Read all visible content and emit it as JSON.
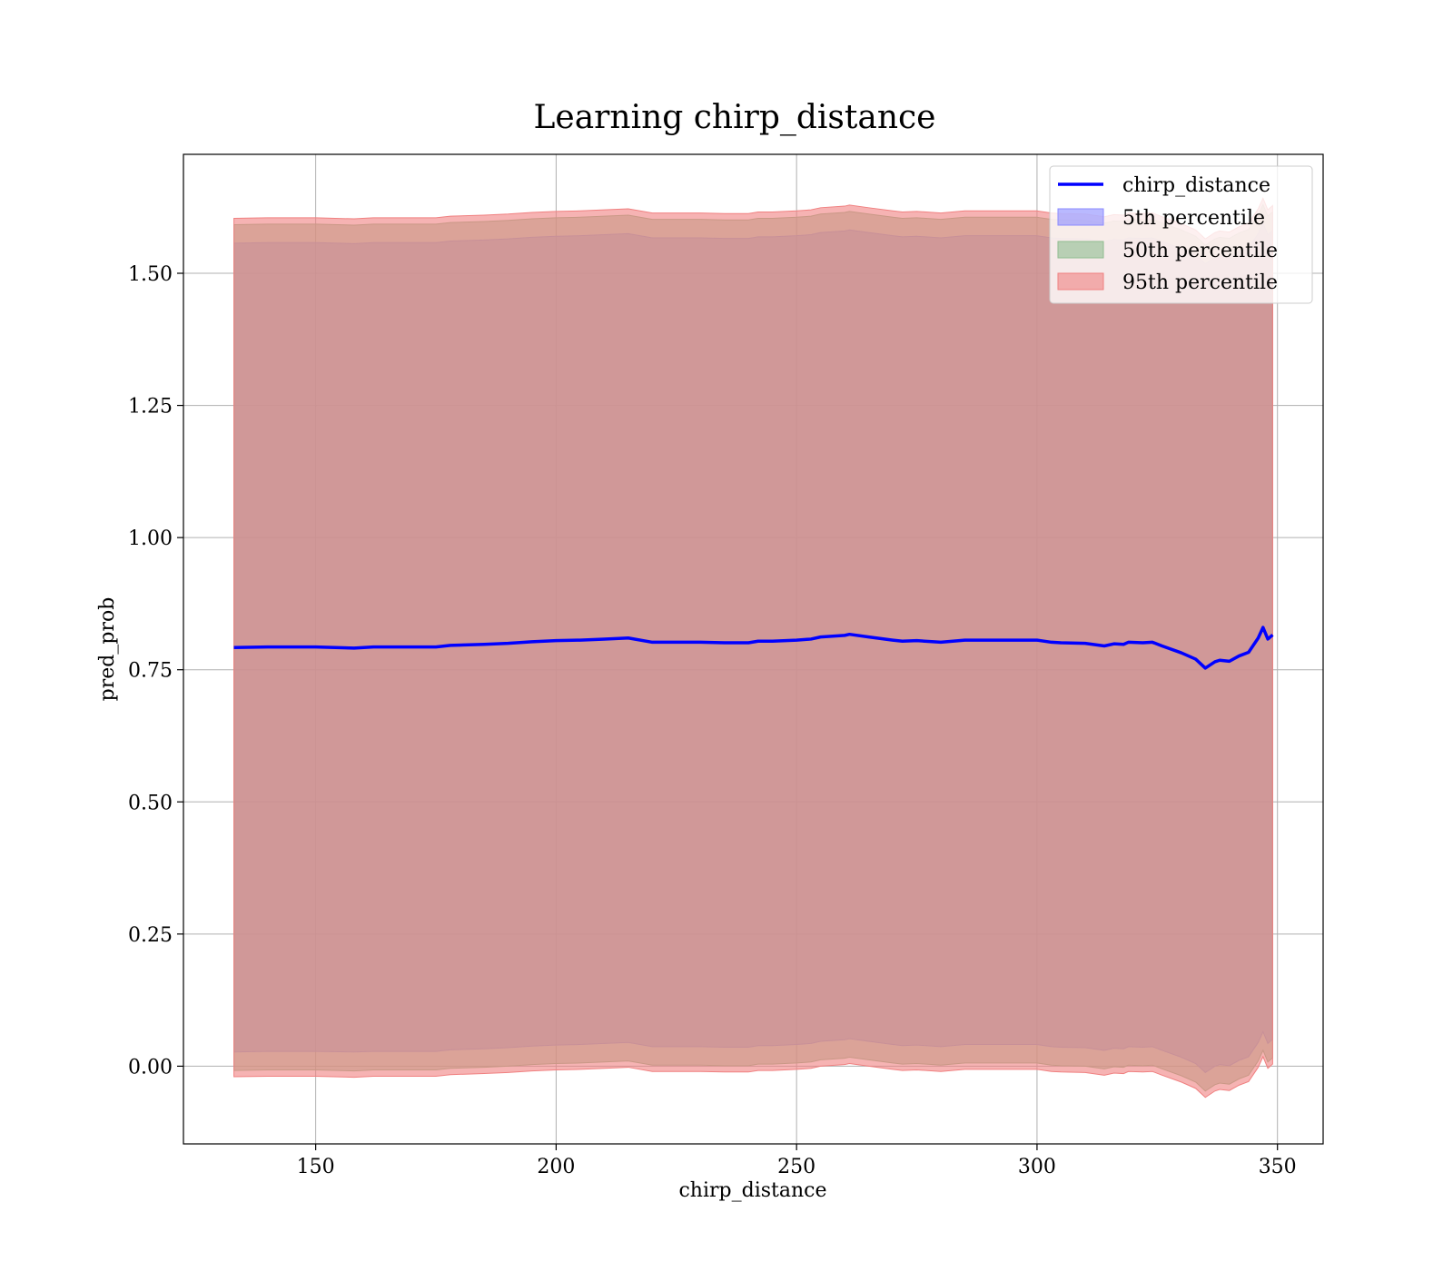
{
  "chart_data": {
    "type": "area",
    "title": "Learning chirp_distance",
    "xlabel": "chirp_distance",
    "ylabel": "pred_prob",
    "xlim": [
      122.5,
      359.5
    ],
    "ylim": [
      -0.147,
      1.725
    ],
    "xticks": [
      150,
      200,
      250,
      300,
      350
    ],
    "xtick_labels": [
      "150",
      "200",
      "250",
      "300",
      "350"
    ],
    "yticks": [
      0.0,
      0.25,
      0.5,
      0.75,
      1.0,
      1.25,
      1.5
    ],
    "ytick_labels": [
      "0.00",
      "0.25",
      "0.50",
      "0.75",
      "1.00",
      "1.25",
      "1.50"
    ],
    "grid": true,
    "legend_position": "top-right",
    "legend": [
      "chirp_distance",
      "5th percentile",
      "50th percentile",
      "95th percentile"
    ],
    "x": [
      133,
      140,
      150,
      158,
      162,
      170,
      175,
      178,
      185,
      190,
      195,
      200,
      205,
      210,
      215,
      220,
      225,
      230,
      235,
      240,
      242,
      245,
      250,
      253,
      255,
      260,
      261,
      265,
      270,
      272,
      275,
      280,
      285,
      290,
      295,
      300,
      303,
      305,
      310,
      314,
      316,
      318,
      319,
      322,
      324,
      326,
      330,
      333,
      335,
      337,
      338,
      340,
      342,
      344,
      346,
      347,
      348,
      349
    ],
    "series": [
      {
        "name": "chirp_distance",
        "values": [
          0.792,
          0.793,
          0.793,
          0.791,
          0.793,
          0.793,
          0.793,
          0.796,
          0.798,
          0.8,
          0.803,
          0.805,
          0.806,
          0.808,
          0.81,
          0.802,
          0.802,
          0.802,
          0.801,
          0.801,
          0.804,
          0.804,
          0.806,
          0.808,
          0.812,
          0.815,
          0.817,
          0.812,
          0.806,
          0.804,
          0.805,
          0.802,
          0.806,
          0.806,
          0.806,
          0.806,
          0.802,
          0.801,
          0.8,
          0.795,
          0.799,
          0.798,
          0.802,
          0.801,
          0.802,
          0.795,
          0.782,
          0.77,
          0.753,
          0.765,
          0.768,
          0.766,
          0.776,
          0.783,
          0.81,
          0.83,
          0.808,
          0.816
        ]
      },
      {
        "name": "5th percentile",
        "color": "#8b8bff",
        "lower": [
          0.027,
          0.028,
          0.028,
          0.027,
          0.028,
          0.028,
          0.028,
          0.031,
          0.033,
          0.035,
          0.038,
          0.04,
          0.041,
          0.043,
          0.045,
          0.037,
          0.037,
          0.037,
          0.036,
          0.036,
          0.039,
          0.039,
          0.041,
          0.043,
          0.047,
          0.05,
          0.052,
          0.047,
          0.041,
          0.039,
          0.04,
          0.037,
          0.041,
          0.041,
          0.041,
          0.041,
          0.037,
          0.036,
          0.035,
          0.03,
          0.034,
          0.033,
          0.037,
          0.036,
          0.037,
          0.03,
          0.017,
          0.005,
          -0.012,
          0.0,
          0.003,
          0.001,
          0.011,
          0.018,
          0.045,
          0.065,
          0.043,
          0.051
        ],
        "upper": [
          1.557,
          1.558,
          1.558,
          1.556,
          1.558,
          1.558,
          1.558,
          1.561,
          1.563,
          1.565,
          1.568,
          1.57,
          1.571,
          1.573,
          1.575,
          1.567,
          1.567,
          1.567,
          1.566,
          1.566,
          1.569,
          1.569,
          1.571,
          1.573,
          1.577,
          1.58,
          1.582,
          1.577,
          1.571,
          1.569,
          1.57,
          1.567,
          1.571,
          1.571,
          1.571,
          1.571,
          1.567,
          1.566,
          1.565,
          1.56,
          1.564,
          1.563,
          1.567,
          1.566,
          1.567,
          1.56,
          1.547,
          1.535,
          1.518,
          1.53,
          1.533,
          1.531,
          1.541,
          1.548,
          1.575,
          1.595,
          1.573,
          1.581
        ]
      },
      {
        "name": "50th percentile",
        "color": "#8fbc8f",
        "lower": [
          -0.008,
          -0.007,
          -0.007,
          -0.009,
          -0.007,
          -0.007,
          -0.007,
          -0.004,
          -0.002,
          0.0,
          0.003,
          0.005,
          0.006,
          0.008,
          0.01,
          0.002,
          0.002,
          0.002,
          0.001,
          0.001,
          0.004,
          0.004,
          0.006,
          0.008,
          0.012,
          0.015,
          0.017,
          0.012,
          0.006,
          0.004,
          0.005,
          0.002,
          0.006,
          0.006,
          0.006,
          0.006,
          0.002,
          0.001,
          0.0,
          -0.005,
          -0.001,
          -0.002,
          0.002,
          0.001,
          0.002,
          -0.005,
          -0.018,
          -0.03,
          -0.047,
          -0.035,
          -0.032,
          -0.034,
          -0.024,
          -0.017,
          0.01,
          0.03,
          0.008,
          0.016
        ],
        "upper": [
          1.592,
          1.593,
          1.593,
          1.591,
          1.593,
          1.593,
          1.593,
          1.596,
          1.598,
          1.6,
          1.603,
          1.605,
          1.606,
          1.608,
          1.61,
          1.602,
          1.602,
          1.602,
          1.601,
          1.601,
          1.604,
          1.604,
          1.606,
          1.608,
          1.612,
          1.615,
          1.617,
          1.612,
          1.606,
          1.604,
          1.605,
          1.602,
          1.606,
          1.606,
          1.606,
          1.606,
          1.602,
          1.601,
          1.6,
          1.595,
          1.599,
          1.598,
          1.602,
          1.601,
          1.602,
          1.595,
          1.582,
          1.57,
          1.553,
          1.565,
          1.568,
          1.566,
          1.576,
          1.583,
          1.61,
          1.63,
          1.608,
          1.616
        ]
      },
      {
        "name": "95th percentile",
        "color": "#f08080",
        "lower": [
          -0.02,
          -0.019,
          -0.019,
          -0.021,
          -0.019,
          -0.019,
          -0.019,
          -0.016,
          -0.014,
          -0.012,
          -0.009,
          -0.007,
          -0.006,
          -0.004,
          -0.002,
          -0.01,
          -0.01,
          -0.01,
          -0.011,
          -0.011,
          -0.008,
          -0.008,
          -0.006,
          -0.004,
          0.0,
          0.003,
          0.005,
          0.0,
          -0.006,
          -0.008,
          -0.007,
          -0.01,
          -0.006,
          -0.006,
          -0.006,
          -0.006,
          -0.01,
          -0.011,
          -0.012,
          -0.017,
          -0.013,
          -0.014,
          -0.01,
          -0.011,
          -0.01,
          -0.017,
          -0.03,
          -0.042,
          -0.059,
          -0.047,
          -0.044,
          -0.046,
          -0.036,
          -0.029,
          -0.002,
          0.018,
          -0.004,
          0.004
        ],
        "upper": [
          1.604,
          1.605,
          1.605,
          1.603,
          1.605,
          1.605,
          1.605,
          1.608,
          1.61,
          1.612,
          1.615,
          1.617,
          1.618,
          1.62,
          1.622,
          1.614,
          1.614,
          1.614,
          1.613,
          1.613,
          1.616,
          1.616,
          1.618,
          1.62,
          1.624,
          1.627,
          1.629,
          1.624,
          1.618,
          1.616,
          1.617,
          1.614,
          1.618,
          1.618,
          1.618,
          1.618,
          1.614,
          1.613,
          1.612,
          1.607,
          1.611,
          1.61,
          1.614,
          1.613,
          1.614,
          1.607,
          1.594,
          1.582,
          1.565,
          1.577,
          1.58,
          1.578,
          1.588,
          1.595,
          1.622,
          1.642,
          1.62,
          1.628
        ]
      }
    ]
  }
}
